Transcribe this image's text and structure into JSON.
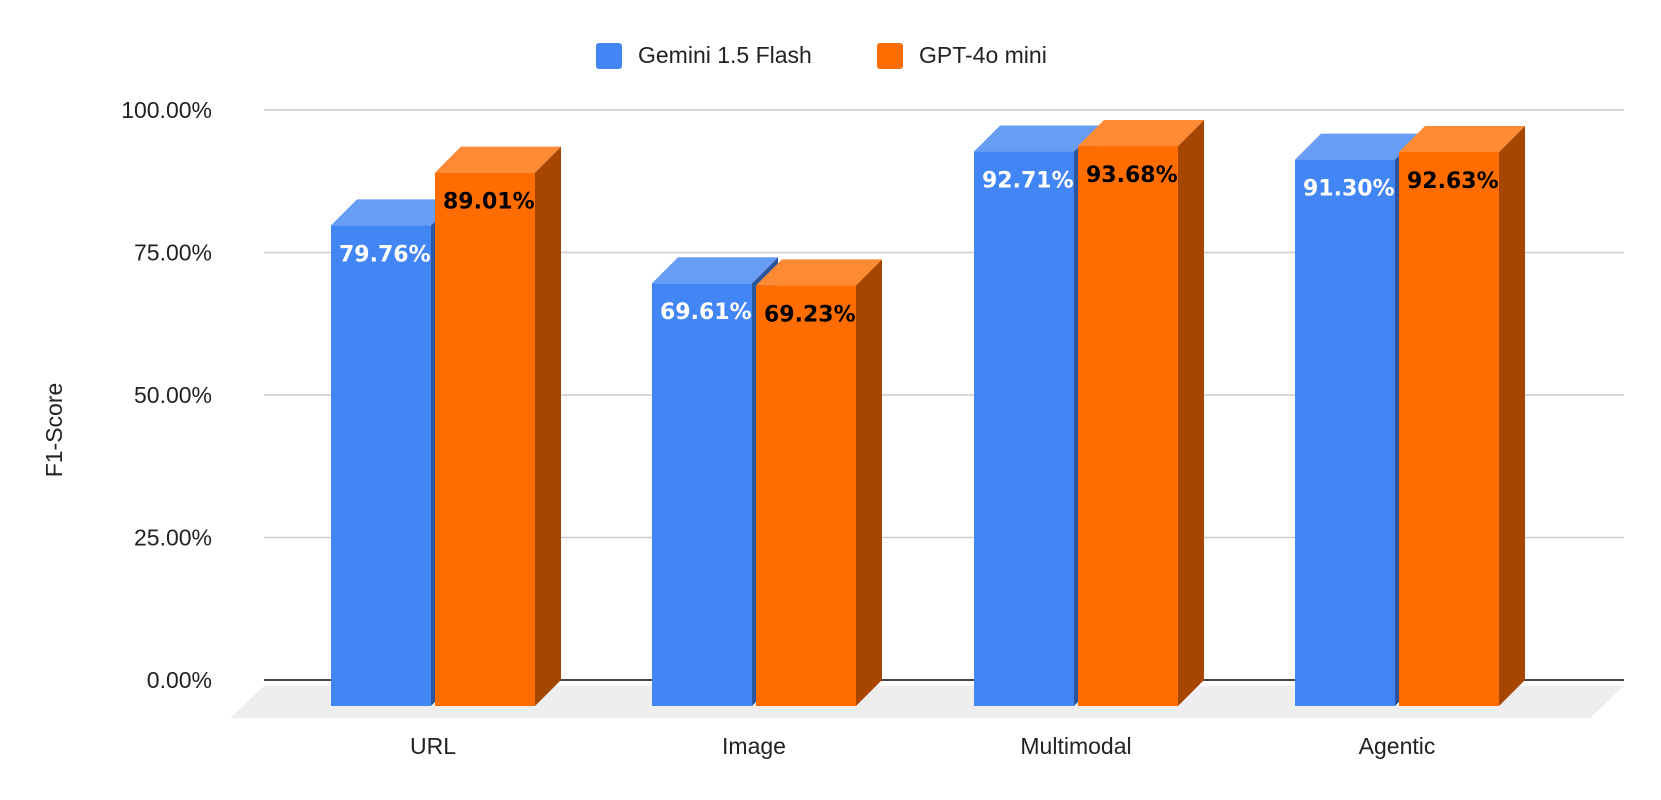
{
  "chart_data": {
    "type": "bar",
    "style": "3d-clustered-column",
    "title": "",
    "xlabel": "",
    "ylabel": "F1-Score",
    "ylim": [
      0,
      100
    ],
    "y_ticks": [
      "0.00%",
      "25.00%",
      "50.00%",
      "75.00%",
      "100.00%"
    ],
    "y_tick_values": [
      0,
      25,
      50,
      75,
      100
    ],
    "grid": true,
    "legend_position": "top-center",
    "categories": [
      "URL",
      "Image",
      "Multimodal",
      "Agentic"
    ],
    "series": [
      {
        "name": "Gemini 1.5 Flash",
        "color": "#4285f4",
        "label_color": "#ffffff",
        "values": [
          79.76,
          69.61,
          92.71,
          91.3
        ],
        "labels": [
          "79.76%",
          "69.61%",
          "92.71%",
          "91.30%"
        ]
      },
      {
        "name": "GPT-4o mini",
        "color": "#ff6d01",
        "label_color": "#000000",
        "values": [
          89.01,
          69.23,
          93.68,
          92.63
        ],
        "labels": [
          "89.01%",
          "69.23%",
          "93.68%",
          "92.63%"
        ]
      }
    ]
  }
}
